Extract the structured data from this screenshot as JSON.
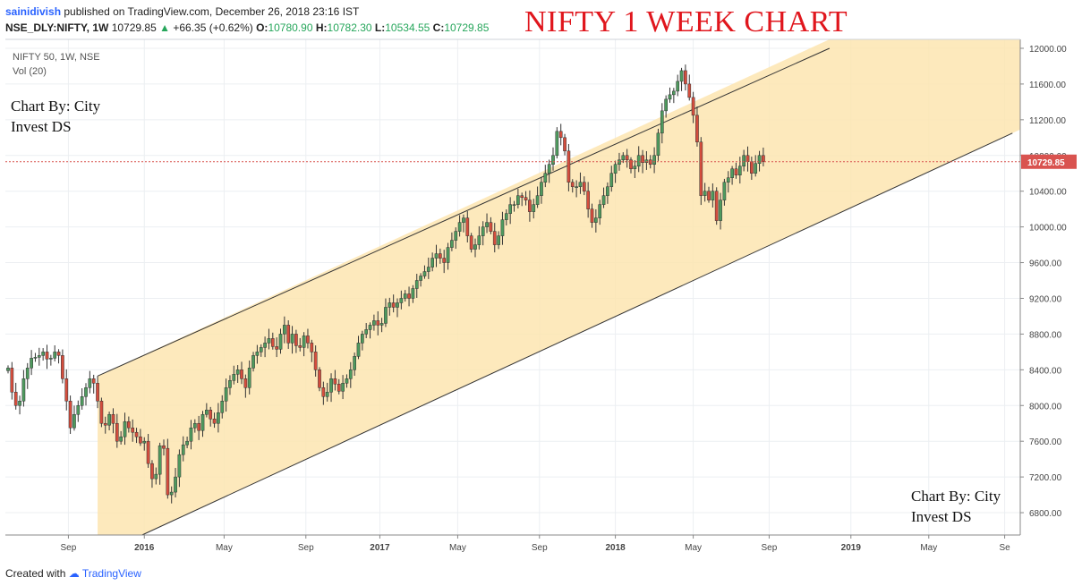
{
  "header": {
    "username": "sainidivish",
    "published_text": "published on TradingView.com, December 26, 2018 23:16 IST",
    "symbol": "NSE_DLY:NIFTY, 1W",
    "last": "10729.85",
    "change": "+66.35 (+0.62%)",
    "ohlc": {
      "o_label": "O:",
      "o": "10780.90",
      "h_label": "H:",
      "h": "10782.30",
      "l_label": "L:",
      "l": "10534.55",
      "c_label": "C:",
      "c": "10729.85"
    }
  },
  "overlay": {
    "big_title": "NIFTY 1 WEEK CHART",
    "series_label": "NIFTY 50, 1W, NSE",
    "vol_label": "Vol (20)",
    "credit_line1": "Chart By: City",
    "credit_line2": "Invest DS"
  },
  "footer": {
    "created_with": "Created with",
    "brand": "TradingView"
  },
  "colors": {
    "up": "#4e9a5e",
    "down": "#d44d3d",
    "channel_fill": "#fde5b0",
    "last_line": "#d9534f",
    "last_badge": "#d9534f"
  },
  "chart_data": {
    "type": "candlestick",
    "title": "NIFTY 1 WEEK CHART",
    "ylim": [
      6550,
      12100
    ],
    "yticks": [
      "12000.00",
      "11600.00",
      "11200.00",
      "10800.00",
      "10400.00",
      "10000.00",
      "9600.00",
      "9200.00",
      "8800.00",
      "8400.00",
      "8000.00",
      "7600.00",
      "7200.00",
      "6800.00"
    ],
    "xticks": [
      {
        "label": "Sep",
        "t": 15.5
      },
      {
        "label": "2016",
        "t": 35
      },
      {
        "label": "May",
        "t": 55.5
      },
      {
        "label": "Sep",
        "t": 76.5
      },
      {
        "label": "2017",
        "t": 95.5
      },
      {
        "label": "May",
        "t": 115.5
      },
      {
        "label": "Sep",
        "t": 136.5
      },
      {
        "label": "2018",
        "t": 156
      },
      {
        "label": "May",
        "t": 176
      },
      {
        "label": "Sep",
        "t": 195.5
      },
      {
        "label": "2019",
        "t": 216.5
      },
      {
        "label": "May",
        "t": 236.5
      },
      {
        "label": "Se",
        "t": 256
      }
    ],
    "last_price": "10729.85",
    "channel": {
      "upper": [
        [
          23,
          8330
        ],
        [
          211,
          12000
        ]
      ],
      "lower": [
        [
          23,
          6320
        ],
        [
          258,
          11050
        ]
      ],
      "shade_start": 23
    },
    "close": [
      8420,
      8150,
      8000,
      8050,
      8300,
      8420,
      8530,
      8540,
      8560,
      8600,
      8520,
      8530,
      8600,
      8560,
      8300,
      8050,
      7750,
      7900,
      8000,
      8100,
      8200,
      8300,
      8250,
      8050,
      7800,
      7780,
      7900,
      7800,
      7600,
      7650,
      7820,
      7750,
      7700,
      7650,
      7580,
      7600,
      7350,
      7180,
      7230,
      7550,
      7520,
      7000,
      7030,
      7200,
      7450,
      7560,
      7600,
      7750,
      7800,
      7720,
      7900,
      7950,
      7850,
      7800,
      7920,
      8050,
      8200,
      8280,
      8350,
      8400,
      8300,
      8200,
      8420,
      8560,
      8600,
      8650,
      8700,
      8750,
      8660,
      8630,
      8800,
      8900,
      8700,
      8800,
      8670,
      8650,
      8780,
      8700,
      8600,
      8400,
      8200,
      8100,
      8150,
      8300,
      8240,
      8160,
      8250,
      8300,
      8400,
      8550,
      8700,
      8800,
      8850,
      8900,
      8950,
      8900,
      8920,
      9100,
      9150,
      9100,
      9150,
      9200,
      9250,
      9200,
      9310,
      9400,
      9450,
      9500,
      9550,
      9650,
      9700,
      9650,
      9600,
      9770,
      9850,
      9950,
      10050,
      10100,
      9900,
      9750,
      9800,
      9900,
      10000,
      10050,
      9950,
      9800,
      9900,
      10080,
      10150,
      10250,
      10250,
      10350,
      10330,
      10300,
      10170,
      10250,
      10350,
      10500,
      10600,
      10700,
      10800,
      11070,
      11000,
      10850,
      10500,
      10450,
      10450,
      10500,
      10400,
      10200,
      10050,
      10100,
      10250,
      10350,
      10450,
      10600,
      10700,
      10750,
      10800,
      10750,
      10650,
      10680,
      10800,
      10720,
      10750,
      10700,
      10800,
      11050,
      11300,
      11430,
      11480,
      11520,
      11630,
      11750,
      11600,
      11450,
      11250,
      10950,
      10350,
      10400,
      10300,
      10400,
      10070,
      10300,
      10500,
      10550,
      10650,
      10580,
      10680,
      10800,
      10730,
      10600,
      10710,
      10800,
      10730
    ]
  }
}
